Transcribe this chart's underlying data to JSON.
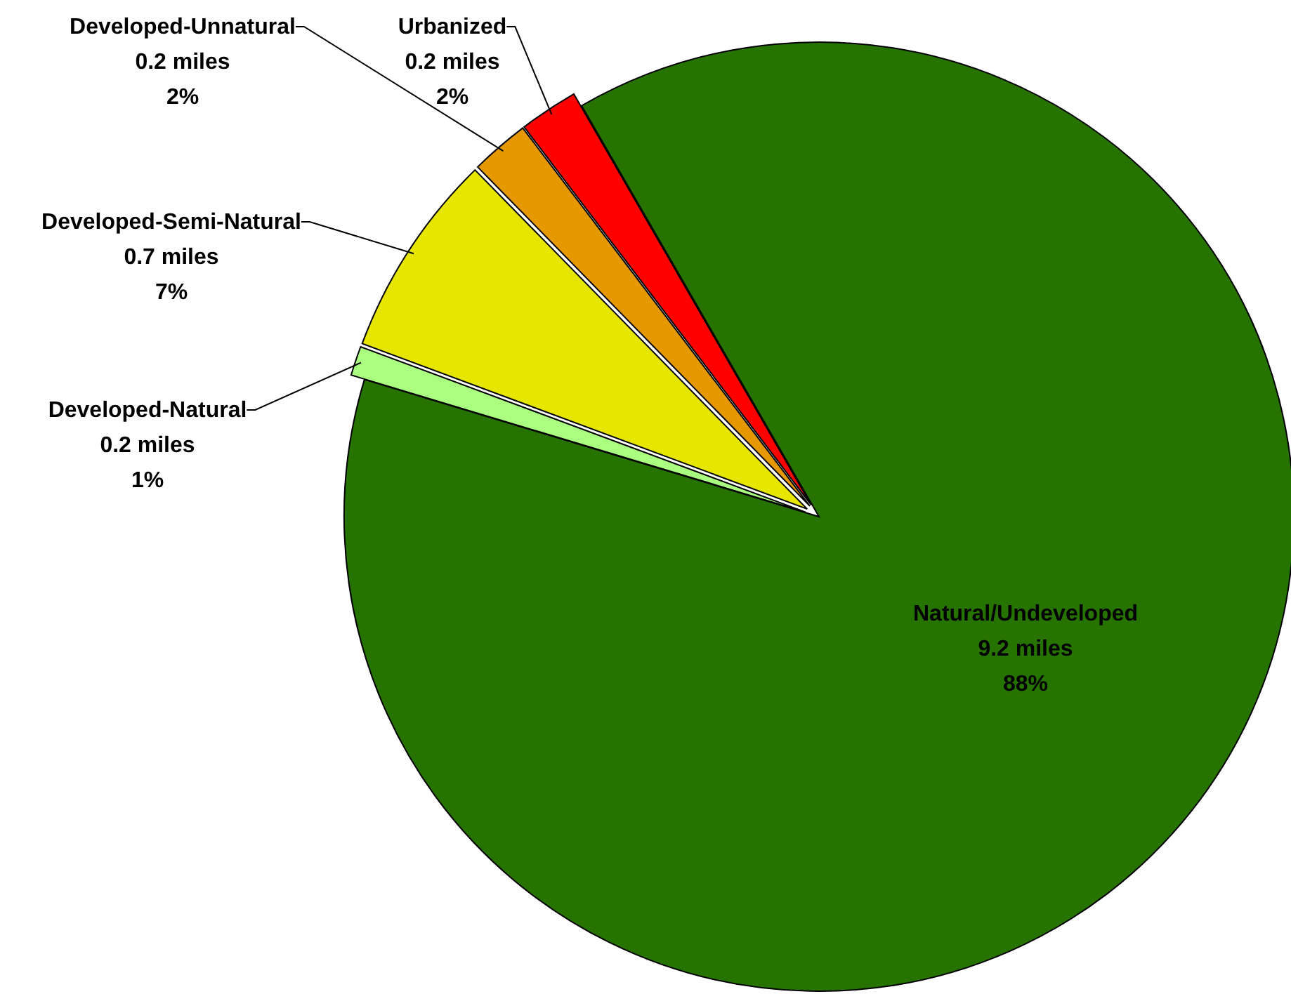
{
  "chart_data": {
    "type": "pie",
    "categories": [
      "Natural/Undeveloped",
      "Developed-Natural",
      "Developed-Semi-Natural",
      "Developed-Unnatural",
      "Urbanized"
    ],
    "values": [
      88,
      1,
      7,
      2,
      2
    ],
    "value_labels": [
      "9.2 miles\n88%",
      "0.2  miles\n1%",
      "0.7 miles\n7%",
      "0.2 miles\n2%",
      "0.2 miles\n2%"
    ],
    "colors": [
      "#267300",
      "#aaff80",
      "#e6e600",
      "#e69800",
      "#ff0000"
    ]
  }
}
